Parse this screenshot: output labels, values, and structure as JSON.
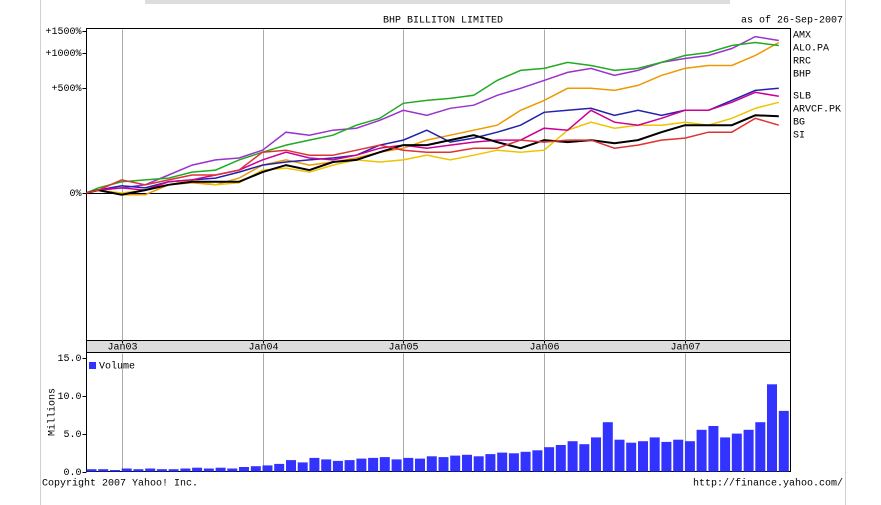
{
  "chart_data": [
    {
      "type": "line",
      "title": "BHP BILLITON LIMITED",
      "subtitle": "as of 26-Sep-2007",
      "log_scale": true,
      "grid": true,
      "x": [
        "2002-10",
        "2002-11",
        "2003-01",
        "2003-03",
        "2003-05",
        "2003-07",
        "2003-09",
        "2003-11",
        "2004-01",
        "2004-03",
        "2004-05",
        "2004-07",
        "2004-09",
        "2004-11",
        "2005-01",
        "2005-03",
        "2005-05",
        "2005-07",
        "2005-09",
        "2005-11",
        "2006-01",
        "2006-03",
        "2006-05",
        "2006-07",
        "2006-09",
        "2006-11",
        "2007-01",
        "2007-03",
        "2007-05",
        "2007-07",
        "2007-09"
      ],
      "xlim": [
        "2002-10",
        "2007-10"
      ],
      "xticks": [
        {
          "value": "2003-01",
          "label": "Jan03"
        },
        {
          "value": "2004-01",
          "label": "Jan04"
        },
        {
          "value": "2005-01",
          "label": "Jan05"
        },
        {
          "value": "2006-01",
          "label": "Jan06"
        },
        {
          "value": "2007-01",
          "label": "Jan07"
        }
      ],
      "ylim": [
        -92,
        1570
      ],
      "yticks": [
        {
          "value": 0,
          "label": "0%"
        },
        {
          "value": 500,
          "label": "+500%"
        },
        {
          "value": 1000,
          "label": "+1000%"
        },
        {
          "value": 1500,
          "label": "+1500%"
        }
      ],
      "series": [
        {
          "name": "AMX",
          "color": "#9933cc",
          "values": [
            0,
            5,
            9,
            15,
            36,
            61,
            76,
            82,
            108,
            183,
            169,
            193,
            203,
            247,
            312,
            278,
            326,
            349,
            432,
            500,
            587,
            688,
            743,
            648,
            715,
            834,
            900,
            952,
            1086,
            1355,
            1259
          ]
        },
        {
          "name": "ALO.PA",
          "color": "#ee9900",
          "values": [
            0,
            5,
            -3,
            -3,
            15,
            19,
            15,
            29,
            61,
            76,
            61,
            70,
            82,
            101,
            115,
            147,
            169,
            193,
            219,
            312,
            388,
            500,
            500,
            479,
            531,
            648,
            743,
            787,
            787,
            952,
            1214
          ]
        },
        {
          "name": "RRC",
          "color": "#22aa22",
          "values": [
            0,
            9,
            21,
            25,
            29,
            43,
            48,
            76,
            101,
            127,
            147,
            169,
            219,
            259,
            364,
            388,
            405,
            432,
            587,
            715,
            743,
            834,
            787,
            715,
            743,
            834,
            952,
            1007,
            1148,
            1214,
            1148
          ]
        },
        {
          "name": "BHP",
          "color": "#2222aa",
          "values": [
            0,
            5,
            13,
            9,
            21,
            25,
            29,
            43,
            61,
            70,
            76,
            82,
            91,
            127,
            147,
            193,
            139,
            156,
            183,
            219,
            298,
            312,
            326,
            278,
            312,
            278,
            312,
            312,
            388,
            479,
            500
          ]
        },
        {
          "name": "SLB",
          "color": "#eec400",
          "values": [
            0,
            5,
            0,
            5,
            15,
            25,
            15,
            19,
            48,
            53,
            43,
            61,
            76,
            70,
            76,
            91,
            76,
            91,
            108,
            101,
            108,
            193,
            236,
            203,
            219,
            219,
            236,
            219,
            259,
            326,
            372
          ]
        },
        {
          "name": "ARVCF.PK",
          "color": "#cc0099",
          "values": [
            0,
            5,
            9,
            5,
            21,
            25,
            36,
            48,
            76,
            101,
            82,
            76,
            91,
            115,
            127,
            115,
            127,
            139,
            147,
            147,
            203,
            193,
            312,
            236,
            219,
            259,
            312,
            312,
            372,
            460,
            423
          ]
        },
        {
          "name": "BG",
          "color": "#000000",
          "values": [
            0,
            5,
            -3,
            5,
            15,
            21,
            21,
            21,
            43,
            61,
            48,
            70,
            76,
            101,
            127,
            127,
            147,
            169,
            139,
            115,
            147,
            139,
            147,
            134,
            147,
            183,
            219,
            219,
            219,
            278,
            272
          ]
        },
        {
          "name": "SI",
          "color": "#dd3333",
          "values": [
            0,
            5,
            25,
            15,
            25,
            36,
            36,
            48,
            101,
            108,
            91,
            91,
            108,
            127,
            108,
            101,
            101,
            115,
            115,
            147,
            139,
            147,
            147,
            115,
            127,
            147,
            156,
            183,
            183,
            259,
            219
          ]
        }
      ]
    },
    {
      "type": "bar",
      "ylabel": "Millions",
      "x": [
        "2002-10",
        "2002-11",
        "2002-12",
        "2003-01",
        "2003-02",
        "2003-03",
        "2003-04",
        "2003-05",
        "2003-06",
        "2003-07",
        "2003-08",
        "2003-09",
        "2003-10",
        "2003-11",
        "2003-12",
        "2004-01",
        "2004-02",
        "2004-03",
        "2004-04",
        "2004-05",
        "2004-06",
        "2004-07",
        "2004-08",
        "2004-09",
        "2004-10",
        "2004-11",
        "2004-12",
        "2005-01",
        "2005-02",
        "2005-03",
        "2005-04",
        "2005-05",
        "2005-06",
        "2005-07",
        "2005-08",
        "2005-09",
        "2005-10",
        "2005-11",
        "2005-12",
        "2006-01",
        "2006-02",
        "2006-03",
        "2006-04",
        "2006-05",
        "2006-06",
        "2006-07",
        "2006-08",
        "2006-09",
        "2006-10",
        "2006-11",
        "2006-12",
        "2007-01",
        "2007-02",
        "2007-03",
        "2007-04",
        "2007-05",
        "2007-06",
        "2007-07",
        "2007-08",
        "2007-09"
      ],
      "ylim": [
        0,
        15.7
      ],
      "yticks": [
        {
          "value": 0,
          "label": "0.0"
        },
        {
          "value": 5,
          "label": "5.0"
        },
        {
          "value": 10,
          "label": "10.0"
        },
        {
          "value": 15,
          "label": "15.0"
        }
      ],
      "series": [
        {
          "name": "Volume",
          "color": "#3333ff",
          "values": [
            0.3,
            0.3,
            0.2,
            0.4,
            0.3,
            0.4,
            0.3,
            0.3,
            0.4,
            0.5,
            0.4,
            0.5,
            0.4,
            0.6,
            0.7,
            0.8,
            1.0,
            1.5,
            1.2,
            1.8,
            1.6,
            1.4,
            1.5,
            1.7,
            1.8,
            1.9,
            1.6,
            1.8,
            1.7,
            2.0,
            1.9,
            2.1,
            2.2,
            2.0,
            2.3,
            2.5,
            2.4,
            2.6,
            2.8,
            3.2,
            3.5,
            4.0,
            3.6,
            4.5,
            6.5,
            4.2,
            3.8,
            4.0,
            4.5,
            3.9,
            4.2,
            4.0,
            5.5,
            6.0,
            4.5,
            5.0,
            5.5,
            6.5,
            11.5,
            8.0
          ]
        }
      ]
    }
  ],
  "footer": {
    "copyright": "Copyright 2007 Yahoo! Inc.",
    "url": "http://finance.yahoo.com/"
  }
}
